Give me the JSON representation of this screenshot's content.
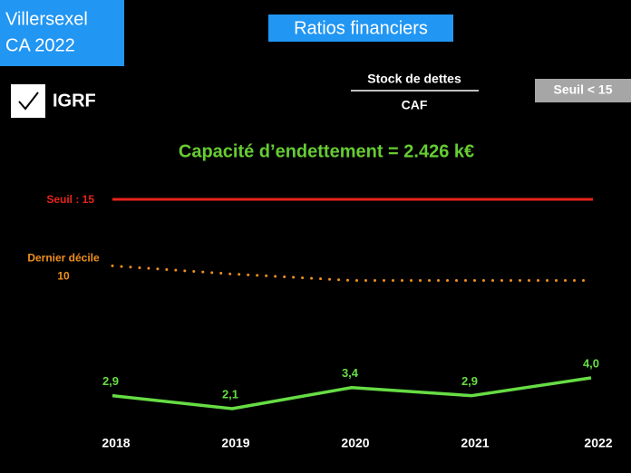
{
  "header": {
    "entity": [
      "Villersexel",
      "CA 2022"
    ],
    "title": "Ratios financiers",
    "ratio_numerator": "Stock de dettes",
    "ratio_denominator": "CAF",
    "threshold_badge": "Seuil < 15",
    "checkbox_label": "IGRF",
    "capacity": "Capacité d’endettement = 2.426 k€"
  },
  "chart_data": {
    "type": "line",
    "categories": [
      "2018",
      "2019",
      "2020",
      "2021",
      "2022"
    ],
    "ylim": [
      0,
      15
    ],
    "threshold": {
      "label": "Seuil : 15",
      "value": 15,
      "color": "#e8241c"
    },
    "series": [
      {
        "name": "Dernier décile",
        "label": "10",
        "color": "#f0901e",
        "style": "dotted",
        "values": [
          10.9,
          10.4,
          10.0,
          10.0,
          10.0
        ]
      },
      {
        "color": "#66dd44",
        "values": [
          2.9,
          2.1,
          3.4,
          2.9,
          4.0
        ],
        "value_labels": [
          "2,9",
          "2,1",
          "3,4",
          "2,9",
          "4,0"
        ]
      }
    ]
  }
}
